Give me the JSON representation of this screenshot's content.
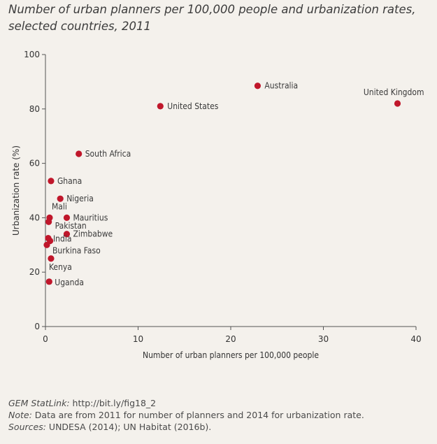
{
  "title_lines": [
    "Number of urban planners per 100,000 people and urbanization rates,",
    "selected countries, 2011"
  ],
  "chart_data": {
    "type": "scatter",
    "xlabel": "Number of urban planners per 100,000 people",
    "ylabel": "Urbanization rate (%)",
    "xlim": [
      0,
      40
    ],
    "ylim": [
      0,
      100
    ],
    "xticks": [
      "0",
      "10",
      "20",
      "30",
      "40"
    ],
    "yticks": [
      "0",
      "20",
      "40",
      "60",
      "80",
      "100"
    ],
    "grid": false,
    "point_color": "#c0172b",
    "points": [
      {
        "label": "Australia",
        "x": 22.9,
        "y": 88.5
      },
      {
        "label": "United Kingdom",
        "x": 38.0,
        "y": 82.0
      },
      {
        "label": "United States",
        "x": 12.4,
        "y": 81.0
      },
      {
        "label": "South Africa",
        "x": 3.6,
        "y": 63.5
      },
      {
        "label": "Ghana",
        "x": 0.6,
        "y": 53.5
      },
      {
        "label": "Nigeria",
        "x": 1.6,
        "y": 47.0
      },
      {
        "label": "Mauritius",
        "x": 2.3,
        "y": 40.0
      },
      {
        "label": "Mali",
        "x": 0.45,
        "y": 40.0
      },
      {
        "label": "Pakistan",
        "x": 0.35,
        "y": 38.5
      },
      {
        "label": "Zimbabwe",
        "x": 2.3,
        "y": 34.0
      },
      {
        "label": "India",
        "x": 0.3,
        "y": 32.5
      },
      {
        "label": "",
        "x": 0.5,
        "y": 31.5
      },
      {
        "label": "Burkina Faso",
        "x": 0.15,
        "y": 30.0
      },
      {
        "label": "Kenya",
        "x": 0.6,
        "y": 25.0
      },
      {
        "label": "Uganda",
        "x": 0.4,
        "y": 16.5
      }
    ]
  },
  "footer": {
    "statlink_label": "GEM StatLink:",
    "statlink_url": "http://bit.ly/fig18_2",
    "note_label": "Note:",
    "note_text": "Data are from 2011 for number of planners and 2014 for urbanization rate.",
    "sources_label": "Sources:",
    "sources_text": "UNDESA (2014); UN Habitat (2016b)."
  }
}
